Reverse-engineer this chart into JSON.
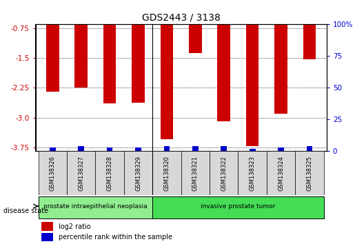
{
  "title": "GDS2443 / 3138",
  "samples": [
    "GSM138326",
    "GSM138327",
    "GSM138328",
    "GSM138329",
    "GSM138320",
    "GSM138321",
    "GSM138322",
    "GSM138323",
    "GSM138324",
    "GSM138325"
  ],
  "log2_ratio": [
    -2.35,
    -2.25,
    -2.65,
    -2.62,
    -3.55,
    -1.38,
    -3.1,
    -3.72,
    -2.9,
    -1.53
  ],
  "percentile_rank": [
    3,
    4,
    3,
    3,
    4,
    4,
    4,
    2,
    3,
    4
  ],
  "ylim_left": [
    -3.85,
    -0.65
  ],
  "ylim_right": [
    0,
    100
  ],
  "yticks_left": [
    -0.75,
    -1.5,
    -2.25,
    -3.0,
    -3.75
  ],
  "yticks_right": [
    0,
    25,
    50,
    75,
    100
  ],
  "disease_groups": [
    {
      "label": "prostate intraepithelial neoplasia",
      "start": 0,
      "end": 4,
      "color": "#90EE90"
    },
    {
      "label": "invasive prostate tumor",
      "start": 4,
      "end": 10,
      "color": "#44DD55"
    }
  ],
  "bar_width": 0.6,
  "red_color": "#CC0000",
  "blue_color": "#0000CC",
  "grid_color": "black",
  "bg_color": "#D8D8D8",
  "legend_red": "log2 ratio",
  "legend_blue": "percentile rank within the sample",
  "disease_state_label": "disease state"
}
